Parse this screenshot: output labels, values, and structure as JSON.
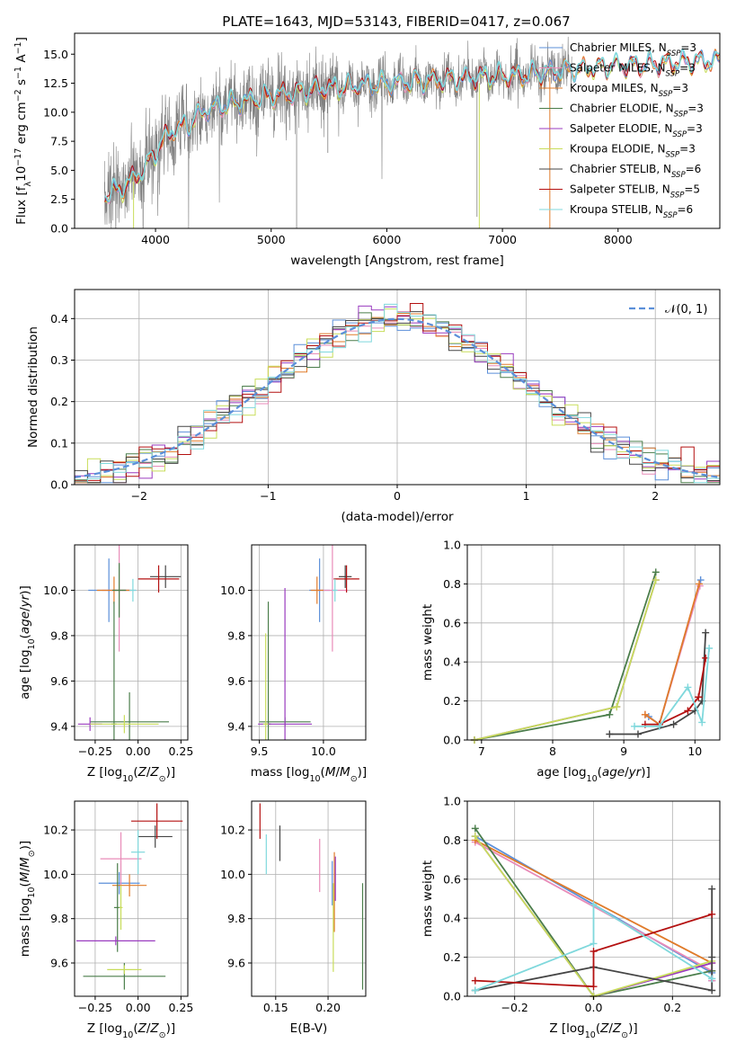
{
  "figure": {
    "title": "PLATE=1643, MJD=53143, FIBERID=0417, z=0.067"
  },
  "colors": {
    "chabrier_miles": "#5b8fd9",
    "salpeter_miles": "#e88bb8",
    "kroupa_miles": "#e07b2a",
    "chabrier_elodie": "#4a7d4a",
    "salpeter_elodie": "#9a3bbf",
    "kroupa_elodie": "#c8dd5a",
    "chabrier_stelib": "#454545",
    "salpeter_stelib": "#b41010",
    "kroupa_stelib": "#7fd8dc",
    "data": "#808080",
    "normal": "#5b8fd9"
  },
  "chart_data": [
    {
      "id": "spectrum",
      "type": "line",
      "title": "PLATE=1643, MJD=53143, FIBERID=0417, z=0.067",
      "xlabel": "wavelength [Angstrom, rest frame]",
      "ylabel": "Flux [fλ 10⁻¹⁷ erg cm⁻² s⁻¹ A⁻¹]",
      "xlim": [
        3300,
        8880
      ],
      "ylim": [
        0,
        16.8
      ],
      "xticks": [
        4000,
        5000,
        6000,
        7000,
        8000
      ],
      "yticks": [
        0.0,
        2.5,
        5.0,
        7.5,
        10.0,
        12.5,
        15.0
      ],
      "continuum_x": [
        3600,
        3700,
        3800,
        3900,
        4000,
        4100,
        4200,
        4300,
        4400,
        4600,
        4800,
        5000,
        5200,
        5400,
        5600,
        5800,
        6000,
        6200,
        6400,
        6600,
        6800,
        7000,
        7200,
        7400,
        7600,
        7800,
        8000,
        8200,
        8400,
        8600,
        8880
      ],
      "continuum_y": [
        3.0,
        3.3,
        4.2,
        5.0,
        6.5,
        8.0,
        8.6,
        9.0,
        10.0,
        10.6,
        11.0,
        11.4,
        11.6,
        12.0,
        12.1,
        12.3,
        12.4,
        12.6,
        12.7,
        12.8,
        13.0,
        13.1,
        13.2,
        13.4,
        13.6,
        13.8,
        14.0,
        14.0,
        14.2,
        14.3,
        14.4
      ],
      "legend": [
        {
          "label": "Chabrier MILES, N",
          "sub": "SSP",
          "tail": "=3",
          "color": "chabrier_miles"
        },
        {
          "label": "Salpeter MILES, N",
          "sub": "SSP",
          "tail": "=3",
          "color": "salpeter_miles"
        },
        {
          "label": "Kroupa MILES, N",
          "sub": "SSP",
          "tail": "=3",
          "color": "kroupa_miles"
        },
        {
          "label": "Chabrier ELODIE, N",
          "sub": "SSP",
          "tail": "=3",
          "color": "chabrier_elodie"
        },
        {
          "label": "Salpeter ELODIE, N",
          "sub": "SSP",
          "tail": "=3",
          "color": "salpeter_elodie"
        },
        {
          "label": "Kroupa ELODIE, N",
          "sub": "SSP",
          "tail": "=3",
          "color": "kroupa_elodie"
        },
        {
          "label": "Chabrier STELIB, N",
          "sub": "SSP",
          "tail": "=6",
          "color": "chabrier_stelib"
        },
        {
          "label": "Salpeter STELIB, N",
          "sub": "SSP",
          "tail": "=5",
          "color": "salpeter_stelib"
        },
        {
          "label": "Kroupa STELIB, N",
          "sub": "SSP",
          "tail": "=6",
          "color": "kroupa_stelib"
        }
      ],
      "legend_position": "right"
    },
    {
      "id": "residuals",
      "type": "bar",
      "xlabel": "(data-model)/error",
      "ylabel": "Normed distribution",
      "xlim": [
        -2.5,
        2.5
      ],
      "ylim": [
        0,
        0.47
      ],
      "xticks": [
        -2,
        -1,
        0,
        1,
        2
      ],
      "yticks": [
        0.0,
        0.1,
        0.2,
        0.3,
        0.4
      ],
      "bin_width": 0.1,
      "bin_start": -2.5,
      "gaussian_label": "𝒩(0, 1)",
      "legend_position": "top-right",
      "grid": true
    },
    {
      "id": "age_vs_Z",
      "type": "scatter",
      "xlabel": "Z [log₁₀(Z/Z⊙)]",
      "ylabel": "age  [log₁₀(age/yr)]",
      "xlim": [
        -0.37,
        0.29
      ],
      "ylim": [
        9.34,
        10.2
      ],
      "xticks": [
        -0.25,
        0.0,
        0.25
      ],
      "xticklabels": [
        "−0.25",
        "0.00",
        "0.25"
      ],
      "yticks": [
        9.4,
        9.6,
        9.8,
        10.0
      ],
      "points": [
        {
          "color": "chabrier_miles",
          "x": -0.17,
          "xerr": 0.12,
          "y": 10.0,
          "yerr": 0.14
        },
        {
          "color": "salpeter_miles",
          "x": -0.11,
          "xerr": 0.1,
          "y": 10.0,
          "yerr": 0.27
        },
        {
          "color": "kroupa_miles",
          "x": -0.14,
          "xerr": 0.1,
          "y": 10.0,
          "yerr": 0.06
        },
        {
          "color": "chabrier_elodie",
          "x": -0.11,
          "xerr": 0.04,
          "y": 10.0,
          "yerr": 0.12
        },
        {
          "color": "chabrier_elodie",
          "x": -0.05,
          "xerr": 0.23,
          "y": 9.42,
          "yerr": 0.13
        },
        {
          "color": "chabrier_elodie",
          "x": -0.14,
          "xerr": 0.015,
          "y": 9.41,
          "yerr": 0.54
        },
        {
          "color": "salpeter_elodie",
          "x": -0.28,
          "xerr": 0.07,
          "y": 9.41,
          "yerr": 0.03
        },
        {
          "color": "kroupa_elodie",
          "x": -0.08,
          "xerr": 0.2,
          "y": 9.41,
          "yerr": 0.04
        },
        {
          "color": "chabrier_stelib",
          "x": 0.16,
          "xerr": 0.09,
          "y": 10.06,
          "yerr": 0.05
        },
        {
          "color": "salpeter_stelib",
          "x": 0.12,
          "xerr": 0.12,
          "y": 10.05,
          "yerr": 0.06
        },
        {
          "color": "kroupa_stelib",
          "x": -0.03,
          "xerr": 0.02,
          "y": 10.0,
          "yerr": 0.05
        }
      ]
    },
    {
      "id": "age_vs_mass",
      "type": "scatter",
      "xlabel": "mass [log₁₀(M/M⊙)]",
      "ylabel": "",
      "xlim": [
        9.44,
        10.33
      ],
      "ylim": [
        9.34,
        10.2
      ],
      "xticks": [
        9.5,
        10.0
      ],
      "xticklabels": [
        "9.5",
        "10.0"
      ],
      "yticks": [
        9.4,
        9.6,
        9.8,
        10.0
      ],
      "points": [
        {
          "color": "chabrier_miles",
          "x": 9.97,
          "xerr": 0.08,
          "y": 10.0,
          "yerr": 0.14
        },
        {
          "color": "salpeter_miles",
          "x": 10.07,
          "xerr": 0.12,
          "y": 10.0,
          "yerr": 0.27
        },
        {
          "color": "kroupa_miles",
          "x": 9.95,
          "xerr": 0.05,
          "y": 10.0,
          "yerr": 0.06
        },
        {
          "color": "chabrier_elodie",
          "x": 9.57,
          "xerr": 0.02,
          "y": 9.41,
          "yerr": 0.54
        },
        {
          "color": "chabrier_elodie",
          "x": 9.7,
          "xerr": 0.2,
          "y": 9.42,
          "yerr": 0.02
        },
        {
          "color": "salpeter_elodie",
          "x": 9.7,
          "xerr": 0.21,
          "y": 9.41,
          "yerr": 0.6
        },
        {
          "color": "kroupa_elodie",
          "x": 9.55,
          "xerr": 0.02,
          "y": 9.41,
          "yerr": 0.4
        },
        {
          "color": "chabrier_stelib",
          "x": 10.17,
          "xerr": 0.05,
          "y": 10.06,
          "yerr": 0.05
        },
        {
          "color": "salpeter_stelib",
          "x": 10.18,
          "xerr": 0.1,
          "y": 10.05,
          "yerr": 0.06
        },
        {
          "color": "kroupa_stelib",
          "x": 10.09,
          "xerr": 0.02,
          "y": 10.0,
          "yerr": 0.05
        }
      ]
    },
    {
      "id": "weight_vs_age",
      "type": "line",
      "xlabel": "age  [log₁₀(age/yr)]",
      "ylabel": "mass weight",
      "xlim": [
        6.8,
        10.35
      ],
      "ylim": [
        0,
        1.0
      ],
      "xticks": [
        7,
        8,
        9,
        10
      ],
      "yticks": [
        0.0,
        0.2,
        0.4,
        0.6,
        0.8,
        1.0
      ],
      "series": [
        {
          "color": "chabrier_miles",
          "x": [
            9.35,
            9.5,
            10.08
          ],
          "y": [
            0.12,
            0.08,
            0.82
          ]
        },
        {
          "color": "salpeter_miles",
          "x": [
            9.3,
            9.5,
            10.07
          ],
          "y": [
            0.13,
            0.08,
            0.79
          ]
        },
        {
          "color": "kroupa_miles",
          "x": [
            9.3,
            9.5,
            10.06
          ],
          "y": [
            0.13,
            0.08,
            0.8
          ]
        },
        {
          "color": "chabrier_elodie",
          "x": [
            6.9,
            8.8,
            9.45
          ],
          "y": [
            0.0,
            0.13,
            0.86
          ]
        },
        {
          "color": "salpeter_elodie",
          "x": [
            6.9,
            8.9,
            9.45
          ],
          "y": [
            0.0,
            0.17,
            0.82
          ]
        },
        {
          "color": "kroupa_elodie",
          "x": [
            6.9,
            8.9,
            9.45
          ],
          "y": [
            0.0,
            0.17,
            0.82
          ]
        },
        {
          "color": "chabrier_stelib",
          "x": [
            8.8,
            9.2,
            9.7,
            10.0,
            10.1,
            10.15
          ],
          "y": [
            0.03,
            0.03,
            0.08,
            0.15,
            0.2,
            0.55
          ]
        },
        {
          "color": "salpeter_stelib",
          "x": [
            9.3,
            9.5,
            9.9,
            10.05,
            10.15
          ],
          "y": [
            0.08,
            0.08,
            0.15,
            0.22,
            0.42
          ]
        },
        {
          "color": "kroupa_stelib",
          "x": [
            9.15,
            9.5,
            9.9,
            10.1,
            10.2
          ],
          "y": [
            0.07,
            0.07,
            0.27,
            0.09,
            0.47
          ]
        }
      ]
    },
    {
      "id": "mass_vs_Z",
      "type": "scatter",
      "xlabel": "Z [log₁₀(Z/Z⊙)]",
      "ylabel": "mass [log₁₀(M/M⊙)]",
      "xlim": [
        -0.37,
        0.29
      ],
      "ylim": [
        9.45,
        10.33
      ],
      "xticks": [
        -0.25,
        0.0,
        0.25
      ],
      "xticklabels": [
        "−0.25",
        "0.00",
        "0.25"
      ],
      "yticks": [
        9.6,
        9.8,
        10.0,
        10.2
      ],
      "points": [
        {
          "color": "chabrier_miles",
          "x": -0.11,
          "xerr": 0.12,
          "y": 9.96,
          "yerr": 0.05
        },
        {
          "color": "salpeter_miles",
          "x": -0.1,
          "xerr": 0.12,
          "y": 10.07,
          "yerr": 0.12
        },
        {
          "color": "kroupa_miles",
          "x": -0.05,
          "xerr": 0.1,
          "y": 9.95,
          "yerr": 0.05
        },
        {
          "color": "chabrier_elodie",
          "x": -0.12,
          "xerr": 0.02,
          "y": 9.85,
          "yerr": 0.2
        },
        {
          "color": "chabrier_elodie",
          "x": -0.08,
          "xerr": 0.24,
          "y": 9.54,
          "yerr": 0.06
        },
        {
          "color": "salpeter_elodie",
          "x": -0.13,
          "xerr": 0.23,
          "y": 9.7,
          "yerr": 0.02
        },
        {
          "color": "kroupa_elodie",
          "x": -0.08,
          "xerr": 0.1,
          "y": 9.57,
          "yerr": 0.02
        },
        {
          "color": "kroupa_elodie",
          "x": -0.1,
          "xerr": 0.01,
          "y": 9.85,
          "yerr": 0.1
        },
        {
          "color": "chabrier_stelib",
          "x": 0.1,
          "xerr": 0.1,
          "y": 10.17,
          "yerr": 0.05
        },
        {
          "color": "salpeter_stelib",
          "x": 0.11,
          "xerr": 0.15,
          "y": 10.24,
          "yerr": 0.08
        },
        {
          "color": "kroupa_stelib",
          "x": 0.0,
          "xerr": 0.04,
          "y": 10.1,
          "yerr": 0.1
        }
      ]
    },
    {
      "id": "mass_vs_ebv",
      "type": "scatter",
      "xlabel": "E(B-V)",
      "ylabel": "",
      "xlim": [
        0.127,
        0.236
      ],
      "ylim": [
        9.45,
        10.33
      ],
      "xticks": [
        0.15,
        0.2
      ],
      "xticklabels": [
        "0.15",
        "0.20"
      ],
      "yticks": [
        9.6,
        9.8,
        10.0,
        10.2
      ],
      "points": [
        {
          "color": "salpeter_miles",
          "x": 0.192,
          "xerr": 0,
          "y": 10.04,
          "yerr": 0.12
        },
        {
          "color": "kroupa_miles",
          "x": 0.206,
          "xerr": 0,
          "y": 9.92,
          "yerr": 0.18
        },
        {
          "color": "chabrier_miles",
          "x": 0.204,
          "xerr": 0,
          "y": 9.96,
          "yerr": 0.1
        },
        {
          "color": "salpeter_elodie",
          "x": 0.207,
          "xerr": 0,
          "y": 9.98,
          "yerr": 0.1
        },
        {
          "color": "kroupa_elodie",
          "x": 0.205,
          "xerr": 0,
          "y": 9.76,
          "yerr": 0.2
        },
        {
          "color": "chabrier_elodie",
          "x": 0.233,
          "xerr": 0,
          "y": 9.72,
          "yerr": 0.24
        },
        {
          "color": "chabrier_stelib",
          "x": 0.154,
          "xerr": 0,
          "y": 10.14,
          "yerr": 0.08
        },
        {
          "color": "salpeter_stelib",
          "x": 0.135,
          "xerr": 0,
          "y": 10.24,
          "yerr": 0.08
        },
        {
          "color": "kroupa_stelib",
          "x": 0.141,
          "xerr": 0,
          "y": 10.09,
          "yerr": 0.09
        }
      ]
    },
    {
      "id": "weight_vs_Z",
      "type": "line",
      "xlabel": "Z [log₁₀(Z/Z⊙)]",
      "ylabel": "mass weight",
      "xlim": [
        -0.32,
        0.32
      ],
      "ylim": [
        0,
        1.0
      ],
      "xticks": [
        -0.2,
        0.0,
        0.2
      ],
      "xticklabels": [
        "−0.2",
        "0.0",
        "0.2"
      ],
      "yticks": [
        0.0,
        0.2,
        0.4,
        0.6,
        0.8,
        1.0
      ],
      "series": [
        {
          "color": "chabrier_miles",
          "x": [
            -0.3,
            0.3,
            0.3
          ],
          "y": [
            0.82,
            0.12,
            0.08
          ]
        },
        {
          "color": "salpeter_miles",
          "x": [
            -0.3,
            0.3,
            0.3
          ],
          "y": [
            0.79,
            0.13,
            0.08
          ]
        },
        {
          "color": "kroupa_miles",
          "x": [
            -0.3,
            0.3,
            0.3
          ],
          "y": [
            0.8,
            0.17,
            0.13
          ]
        },
        {
          "color": "chabrier_elodie",
          "x": [
            -0.3,
            0.0,
            0.3
          ],
          "y": [
            0.86,
            0.0,
            0.13
          ]
        },
        {
          "color": "salpeter_elodie",
          "x": [
            -0.3,
            0.0,
            0.3
          ],
          "y": [
            0.82,
            0.0,
            0.17
          ]
        },
        {
          "color": "kroupa_elodie",
          "x": [
            -0.3,
            0.0,
            0.3
          ],
          "y": [
            0.82,
            0.0,
            0.18
          ]
        },
        {
          "color": "chabrier_stelib",
          "x": [
            -0.3,
            0.0,
            0.3,
            0.3,
            0.3
          ],
          "y": [
            0.03,
            0.15,
            0.03,
            0.2,
            0.55
          ]
        },
        {
          "color": "salpeter_stelib",
          "x": [
            -0.3,
            0.0,
            0.0,
            0.3
          ],
          "y": [
            0.08,
            0.05,
            0.23,
            0.42
          ]
        },
        {
          "color": "kroupa_stelib",
          "x": [
            -0.3,
            0.0,
            0.0,
            0.3,
            0.3
          ],
          "y": [
            0.03,
            0.27,
            0.47,
            0.09,
            0.09
          ]
        }
      ]
    }
  ]
}
